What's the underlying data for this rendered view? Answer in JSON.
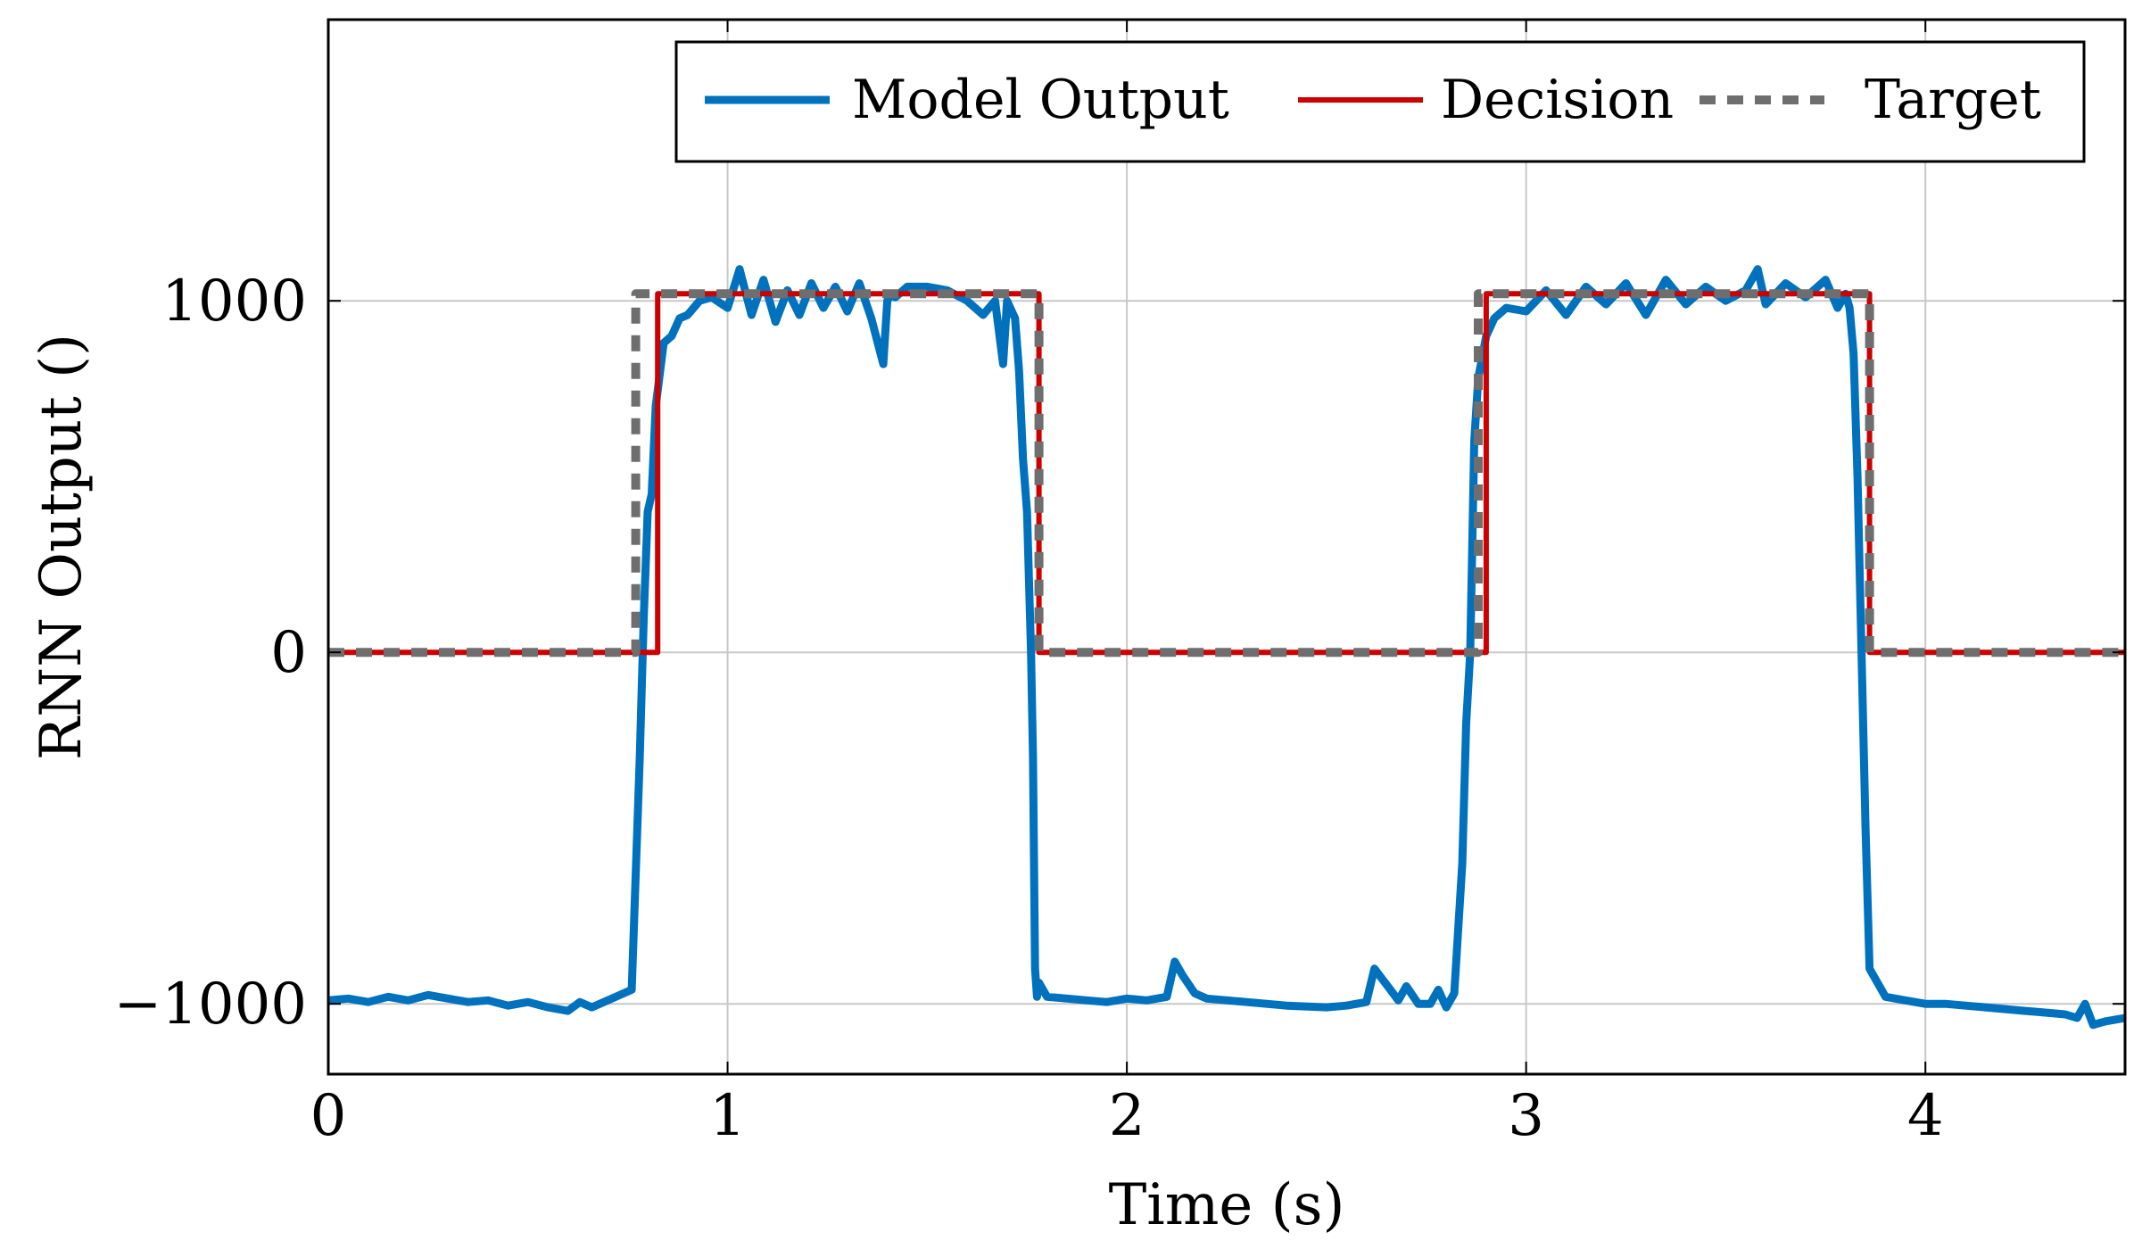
{
  "chart_data": {
    "type": "line",
    "title": "",
    "xlabel": "Time (s)",
    "ylabel": "RNN Output ()",
    "xlim": [
      0,
      4.5
    ],
    "ylim": [
      -1200,
      1800
    ],
    "grid": true,
    "legend_position": "top-right",
    "x_ticks": [
      0,
      1,
      2,
      3,
      4
    ],
    "x_tick_labels": [
      "0",
      "1",
      "2",
      "3",
      "4"
    ],
    "y_ticks": [
      -1000,
      0,
      1000
    ],
    "y_tick_labels": [
      "−1000",
      "0",
      "1000"
    ],
    "colors": {
      "model_output": "#0072bd",
      "decision": "#cc0000",
      "target": "#6e6e6e",
      "grid": "#c8c8c8"
    },
    "series": [
      {
        "name": "Model Output",
        "style": "solid",
        "x": [
          0,
          0.05,
          0.1,
          0.15,
          0.2,
          0.25,
          0.3,
          0.35,
          0.4,
          0.45,
          0.5,
          0.55,
          0.6,
          0.63,
          0.66,
          0.7,
          0.73,
          0.76,
          0.78,
          0.79,
          0.8,
          0.81,
          0.82,
          0.84,
          0.86,
          0.88,
          0.9,
          0.93,
          0.96,
          1.0,
          1.03,
          1.06,
          1.09,
          1.12,
          1.15,
          1.18,
          1.21,
          1.24,
          1.27,
          1.3,
          1.33,
          1.36,
          1.39,
          1.4,
          1.41,
          1.42,
          1.45,
          1.5,
          1.55,
          1.6,
          1.64,
          1.67,
          1.69,
          1.7,
          1.72,
          1.73,
          1.74,
          1.75,
          1.76,
          1.765,
          1.77,
          1.775,
          1.78,
          1.8,
          1.85,
          1.9,
          1.95,
          2.0,
          2.05,
          2.1,
          2.12,
          2.14,
          2.17,
          2.2,
          2.3,
          2.4,
          2.5,
          2.55,
          2.6,
          2.62,
          2.64,
          2.66,
          2.68,
          2.7,
          2.73,
          2.76,
          2.78,
          2.8,
          2.82,
          2.84,
          2.85,
          2.86,
          2.87,
          2.88,
          2.9,
          2.92,
          2.95,
          3.0,
          3.05,
          3.1,
          3.15,
          3.2,
          3.25,
          3.3,
          3.35,
          3.4,
          3.45,
          3.5,
          3.55,
          3.58,
          3.6,
          3.65,
          3.7,
          3.75,
          3.78,
          3.8,
          3.81,
          3.82,
          3.83,
          3.84,
          3.85,
          3.86,
          3.9,
          3.95,
          4.0,
          4.05,
          4.1,
          4.15,
          4.2,
          4.25,
          4.3,
          4.35,
          4.38,
          4.4,
          4.42,
          4.45,
          4.5
        ],
        "y": [
          -990,
          -985,
          -995,
          -980,
          -990,
          -975,
          -985,
          -995,
          -990,
          -1005,
          -995,
          -1010,
          -1020,
          -995,
          -1010,
          -990,
          -975,
          -960,
          -300,
          100,
          400,
          450,
          700,
          880,
          900,
          950,
          960,
          1000,
          1010,
          980,
          1090,
          960,
          1060,
          940,
          1030,
          960,
          1050,
          980,
          1040,
          970,
          1050,
          950,
          820,
          1000,
          1020,
          1010,
          1040,
          1040,
          1030,
          1000,
          960,
          1000,
          820,
          1000,
          950,
          800,
          550,
          400,
          0,
          -300,
          -900,
          -980,
          -940,
          -980,
          -985,
          -990,
          -995,
          -985,
          -990,
          -980,
          -880,
          -920,
          -970,
          -985,
          -995,
          -1005,
          -1010,
          -1005,
          -995,
          -900,
          -930,
          -960,
          -990,
          -950,
          -1000,
          -1000,
          -960,
          -1010,
          -970,
          -600,
          -200,
          0,
          600,
          780,
          900,
          950,
          980,
          970,
          1030,
          960,
          1040,
          990,
          1050,
          960,
          1060,
          990,
          1040,
          1000,
          1030,
          1090,
          990,
          1050,
          1010,
          1060,
          980,
          1020,
          980,
          850,
          500,
          0,
          -500,
          -900,
          -980,
          -990,
          -1000,
          -1000,
          -1005,
          -1010,
          -1015,
          -1020,
          -1025,
          -1030,
          -1040,
          -1000,
          -1060,
          -1050,
          -1040
        ]
      },
      {
        "name": "Decision",
        "style": "solid",
        "x": [
          0,
          0.825,
          0.825,
          1.78,
          1.78,
          2.9,
          2.9,
          3.86,
          3.86,
          4.5
        ],
        "y": [
          0,
          0,
          1020,
          1020,
          0,
          0,
          1020,
          1020,
          0,
          0
        ]
      },
      {
        "name": "Target",
        "style": "dashed",
        "x": [
          0,
          0.77,
          0.77,
          1.78,
          1.78,
          2.88,
          2.88,
          3.86,
          3.86,
          4.5
        ],
        "y": [
          0,
          0,
          1020,
          1020,
          0,
          0,
          1020,
          1020,
          0,
          0
        ]
      }
    ]
  }
}
